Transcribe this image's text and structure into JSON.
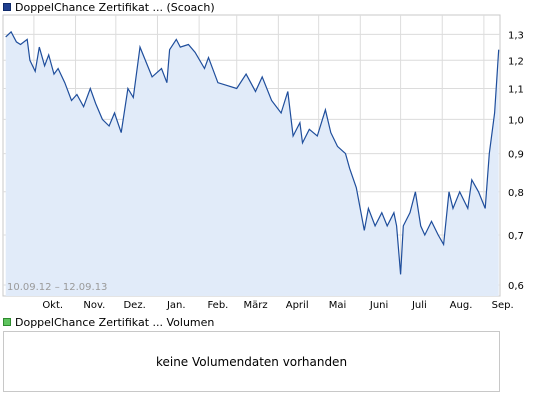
{
  "legend": {
    "price_label": "DoppelChance Zertifikat ... (Scoach)",
    "price_color": "#1f3f8f",
    "volume_label": "DoppelChance Zertifikat ... Volumen",
    "volume_color": "#5ec45e"
  },
  "volume_panel": {
    "message": "keine Volumendaten vorhanden"
  },
  "chart_data": {
    "type": "line",
    "date_range_label": "10.09.12 – 12.09.13",
    "x_ticks": [
      "Okt.",
      "Nov.",
      "Dez.",
      "Jan.",
      "Feb.",
      "März",
      "April",
      "Mai",
      "Juni",
      "Juli",
      "Aug.",
      "Sep."
    ],
    "y_ticks": [
      "1,3",
      "1,2",
      "1,1",
      "1,0",
      "0,9",
      "0,8",
      "0,7",
      "0,6"
    ],
    "y_scale": "log",
    "ylim": [
      0.58,
      1.38
    ],
    "grid": true,
    "area_fill": true,
    "line_color": "#1f4e9c",
    "fill_color": "#e1ebf9",
    "series": [
      {
        "x": [
          "2012-09-10",
          "2012-09-14",
          "2012-09-18",
          "2012-09-21",
          "2012-09-26",
          "2012-09-28",
          "2012-10-02",
          "2012-10-05",
          "2012-10-09",
          "2012-10-12",
          "2012-10-16",
          "2012-10-19",
          "2012-10-24",
          "2012-10-29",
          "2012-11-02",
          "2012-11-07",
          "2012-11-12",
          "2012-11-16",
          "2012-11-21",
          "2012-11-26",
          "2012-11-30",
          "2012-12-05",
          "2012-12-10",
          "2012-12-14",
          "2012-12-19",
          "2012-12-28",
          "2013-01-04",
          "2013-01-08",
          "2013-01-10",
          "2013-01-15",
          "2013-01-18",
          "2013-01-24",
          "2013-01-29",
          "2013-02-05",
          "2013-02-08",
          "2013-02-15",
          "2013-02-22",
          "2013-03-01",
          "2013-03-08",
          "2013-03-15",
          "2013-03-20",
          "2013-03-27",
          "2013-04-03",
          "2013-04-08",
          "2013-04-12",
          "2013-04-17",
          "2013-04-19",
          "2013-04-24",
          "2013-04-30",
          "2013-05-06",
          "2013-05-10",
          "2013-05-15",
          "2013-05-21",
          "2013-05-24",
          "2013-05-29",
          "2013-06-04",
          "2013-06-07",
          "2013-06-12",
          "2013-06-17",
          "2013-06-21",
          "2013-06-26",
          "2013-06-28",
          "2013-07-01",
          "2013-07-03",
          "2013-07-08",
          "2013-07-12",
          "2013-07-16",
          "2013-07-19",
          "2013-07-24",
          "2013-07-29",
          "2013-08-02",
          "2013-08-06",
          "2013-08-09",
          "2013-08-14",
          "2013-08-20",
          "2013-08-23",
          "2013-08-28",
          "2013-09-02",
          "2013-09-05",
          "2013-09-09",
          "2013-09-12"
        ],
        "y": [
          1.29,
          1.31,
          1.27,
          1.26,
          1.28,
          1.2,
          1.16,
          1.25,
          1.18,
          1.22,
          1.15,
          1.17,
          1.12,
          1.06,
          1.08,
          1.04,
          1.1,
          1.05,
          1.0,
          0.98,
          1.02,
          0.96,
          1.1,
          1.07,
          1.25,
          1.14,
          1.17,
          1.12,
          1.24,
          1.28,
          1.25,
          1.26,
          1.23,
          1.17,
          1.21,
          1.12,
          1.11,
          1.1,
          1.15,
          1.09,
          1.14,
          1.06,
          1.02,
          1.09,
          0.95,
          0.99,
          0.93,
          0.97,
          0.95,
          1.03,
          0.96,
          0.92,
          0.9,
          0.86,
          0.81,
          0.71,
          0.76,
          0.72,
          0.75,
          0.72,
          0.75,
          0.72,
          0.62,
          0.72,
          0.75,
          0.8,
          0.72,
          0.7,
          0.73,
          0.7,
          0.68,
          0.8,
          0.76,
          0.8,
          0.76,
          0.83,
          0.8,
          0.76,
          0.9,
          1.02,
          1.24
        ]
      }
    ]
  }
}
